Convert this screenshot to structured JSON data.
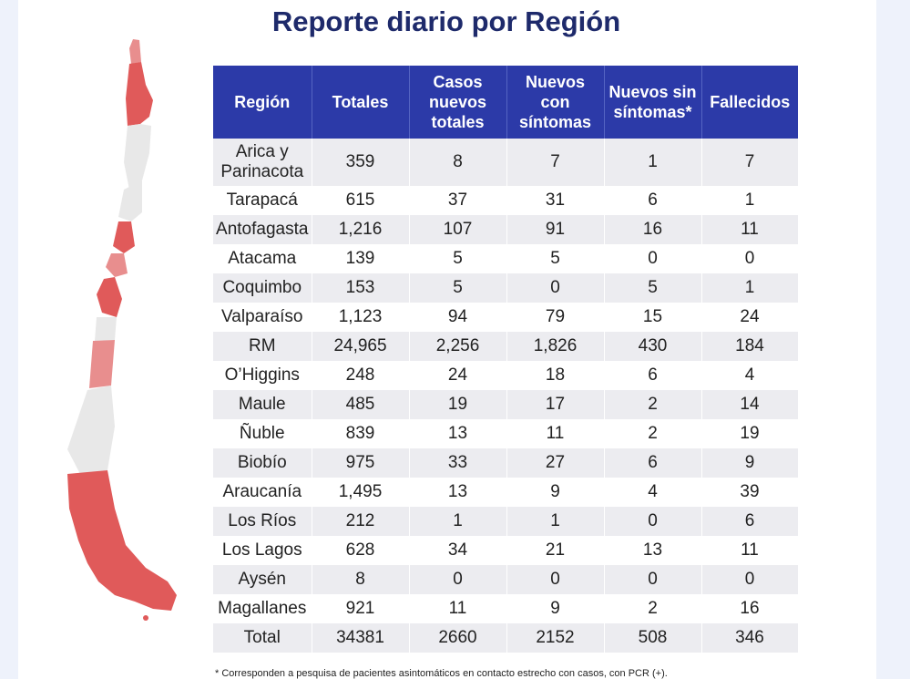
{
  "title": "Reporte diario por Región",
  "table": {
    "headers": [
      "Región",
      "Totales",
      "Casos nuevos totales",
      "Nuevos con síntomas",
      "Nuevos sin síntomas*",
      "Fallecidos"
    ],
    "rows": [
      [
        "Arica y Parinacota",
        "359",
        "8",
        "7",
        "1",
        "7"
      ],
      [
        "Tarapacá",
        "615",
        "37",
        "31",
        "6",
        "1"
      ],
      [
        "Antofagasta",
        "1,216",
        "107",
        "91",
        "16",
        "11"
      ],
      [
        "Atacama",
        "139",
        "5",
        "5",
        "0",
        "0"
      ],
      [
        "Coquimbo",
        "153",
        "5",
        "0",
        "5",
        "1"
      ],
      [
        "Valparaíso",
        "1,123",
        "94",
        "79",
        "15",
        "24"
      ],
      [
        "RM",
        "24,965",
        "2,256",
        "1,826",
        "430",
        "184"
      ],
      [
        "O’Higgins",
        "248",
        "24",
        "18",
        "6",
        "4"
      ],
      [
        "Maule",
        "485",
        "19",
        "17",
        "2",
        "14"
      ],
      [
        "Ñuble",
        "839",
        "13",
        "11",
        "2",
        "19"
      ],
      [
        "Biobío",
        "975",
        "33",
        "27",
        "6",
        "9"
      ],
      [
        "Araucanía",
        "1,495",
        "13",
        "9",
        "4",
        "39"
      ],
      [
        "Los Ríos",
        "212",
        "1",
        "1",
        "0",
        "6"
      ],
      [
        "Los Lagos",
        "628",
        "34",
        "21",
        "13",
        "11"
      ],
      [
        "Aysén",
        "8",
        "0",
        "0",
        "0",
        "0"
      ],
      [
        "Magallanes",
        "921",
        "11",
        "9",
        "2",
        "16"
      ],
      [
        "Total",
        "34381",
        "2660",
        "2152",
        "508",
        "346"
      ]
    ]
  },
  "footnote": "* Corresponden a pesquisa de pacientes asintomáticos en contacto estrecho con casos, con PCR (+).",
  "colors": {
    "header": "#2c3aa8",
    "title": "#1e2a6b",
    "map_dark": "#e05a5a",
    "map_mid": "#e88e8e",
    "map_light": "#e8e8e8"
  }
}
